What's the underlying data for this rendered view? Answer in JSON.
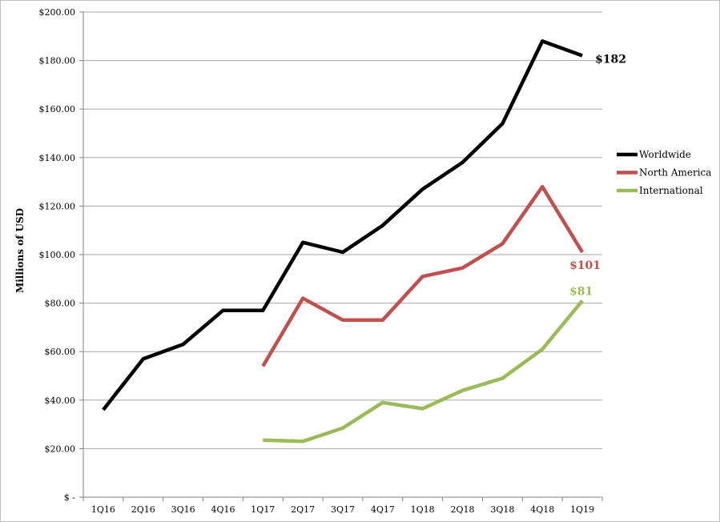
{
  "chart_data": {
    "type": "line",
    "title": "",
    "xlabel": "",
    "ylabel": "Millions of USD",
    "categories": [
      "1Q16",
      "2Q16",
      "3Q16",
      "4Q16",
      "1Q17",
      "2Q17",
      "3Q17",
      "4Q17",
      "1Q18",
      "2Q18",
      "3Q18",
      "4Q18",
      "1Q19"
    ],
    "y_ticks": [
      "$ -",
      "$20.00",
      "$40.00",
      "$60.00",
      "$80.00",
      "$100.00",
      "$120.00",
      "$140.00",
      "$160.00",
      "$180.00",
      "$200.00"
    ],
    "ylim": [
      0,
      200
    ],
    "grid": true,
    "legend_position": "right",
    "series": [
      {
        "name": "Worldwide",
        "color": "#000000",
        "values": [
          36,
          57,
          63,
          77,
          77,
          105,
          101,
          112,
          127,
          138,
          154,
          188,
          182
        ],
        "end_label": "$182"
      },
      {
        "name": "North America",
        "color": "#c0504d",
        "values": [
          null,
          null,
          null,
          null,
          54,
          82,
          73,
          73,
          91,
          94.5,
          104.5,
          128,
          101
        ],
        "end_label": "$101"
      },
      {
        "name": "International",
        "color": "#9bbb59",
        "values": [
          null,
          null,
          null,
          null,
          23.5,
          23,
          28.5,
          39,
          36.5,
          44,
          49,
          61,
          81
        ],
        "end_label": "$81"
      }
    ]
  }
}
